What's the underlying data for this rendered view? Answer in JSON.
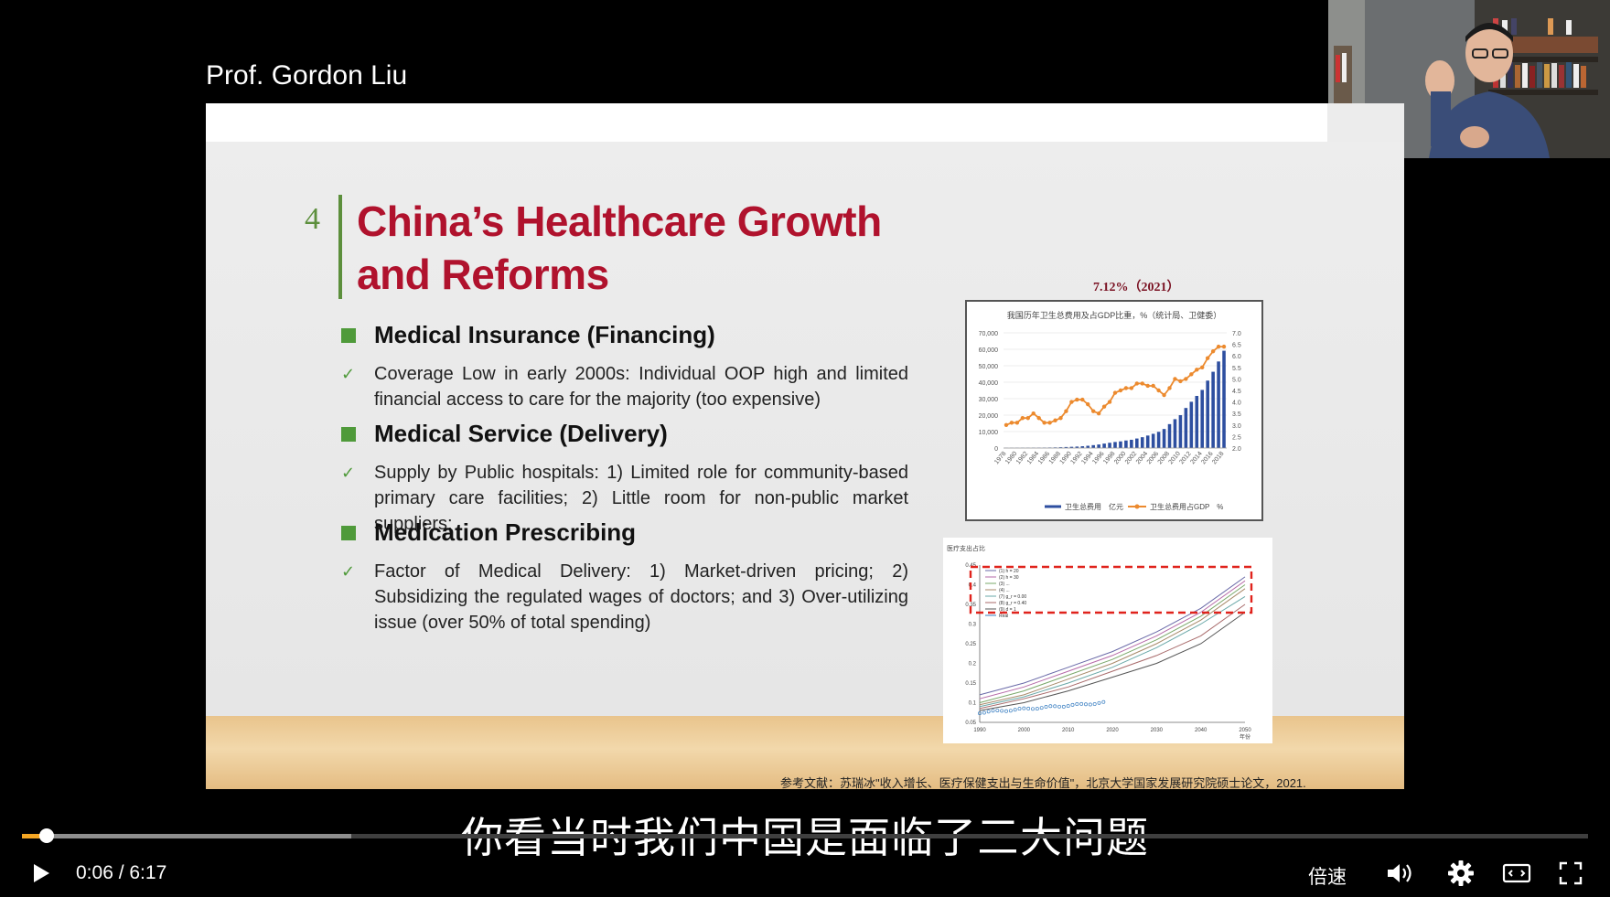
{
  "presenter": {
    "name": "Prof. Gordon Liu"
  },
  "slide": {
    "number": "4",
    "title_line1": "China’s Healthcare Growth",
    "title_line2": "and Reforms",
    "sections": [
      {
        "heading": "Medical Insurance (Financing)",
        "bullet": "Coverage Low in early 2000s: Individual OOP high and limited financial access to care for the majority (too expensive)"
      },
      {
        "heading": "Medical Service (Delivery)",
        "bullet": "Supply by Public hospitals: 1) Limited role for community-based primary care facilities; 2) Little room for non-public market suppliers;"
      },
      {
        "heading": "Medication Prescribing",
        "bullet": "Factor of Medical Delivery: 1) Market-driven pricing; 2) Subsidizing the regulated wages of doctors; and 3) Over-utilizing issue (over 50% of total spending)"
      }
    ],
    "chart1_label": "7.12%（2021）",
    "reference": "参考文献：苏瑞冰\"收入增长、医疗保健支出与生命价值\"，北京大学国家发展研究院硕士论文，2021."
  },
  "chart_data": [
    {
      "type": "bar",
      "title": "我国历年卫生总费用及占GDP比重，%（统计局、卫健委）",
      "categories": [
        "1978",
        "1979",
        "1980",
        "1981",
        "1982",
        "1983",
        "1984",
        "1985",
        "1986",
        "1987",
        "1988",
        "1989",
        "1990",
        "1991",
        "1992",
        "1993",
        "1994",
        "1995",
        "1996",
        "1997",
        "1998",
        "1999",
        "2000",
        "2001",
        "2002",
        "2003",
        "2004",
        "2005",
        "2006",
        "2007",
        "2008",
        "2009",
        "2010",
        "2011",
        "2012",
        "2013",
        "2014",
        "2015",
        "2016",
        "2017",
        "2018"
      ],
      "x_tick_labels": [
        "1978",
        "1980",
        "1982",
        "1984",
        "1986",
        "1988",
        "1990",
        "1992",
        "1994",
        "1996",
        "1998",
        "2000",
        "2002",
        "2004",
        "2006",
        "2008",
        "2010",
        "2012",
        "2014",
        "2016",
        "2018"
      ],
      "ylim_left": [
        0,
        70000
      ],
      "y_ticks_left": [
        "0",
        "10,000",
        "20,000",
        "30,000",
        "40,000",
        "50,000",
        "60,000",
        "70,000"
      ],
      "ylim_right": [
        2.0,
        7.0
      ],
      "y_ticks_right": [
        "2.0",
        "2.5",
        "3.0",
        "3.5",
        "4.0",
        "4.5",
        "5.0",
        "5.5",
        "6.0",
        "6.5",
        "7.0"
      ],
      "series": [
        {
          "name": "卫生总费用　亿元",
          "color": "#2e4fa0",
          "values": [
            110,
            126,
            143,
            160,
            177,
            207,
            242,
            279,
            316,
            379,
            488,
            615,
            747,
            893,
            1096,
            1377,
            1761,
            2155,
            2709,
            3197,
            3679,
            4048,
            4587,
            5025,
            5790,
            6584,
            7590,
            8660,
            9843,
            11574,
            14535,
            17542,
            19980,
            24346,
            28119,
            31669,
            35312,
            40975,
            46345,
            52598,
            59122
          ]
        },
        {
          "name": "卫生总费用占GDP　%",
          "color": "#ec8a2e",
          "axis": "right",
          "values": [
            3.0,
            3.1,
            3.1,
            3.3,
            3.3,
            3.5,
            3.3,
            3.1,
            3.1,
            3.2,
            3.3,
            3.6,
            4.0,
            4.1,
            4.1,
            3.9,
            3.6,
            3.5,
            3.8,
            4.0,
            4.4,
            4.5,
            4.6,
            4.6,
            4.8,
            4.8,
            4.7,
            4.7,
            4.5,
            4.3,
            4.6,
            5.0,
            4.9,
            5.0,
            5.2,
            5.4,
            5.5,
            5.9,
            6.2,
            6.4,
            6.4
          ]
        }
      ],
      "grid": true,
      "legend": "bottom"
    },
    {
      "type": "line",
      "title": "医疗支出占比",
      "xlabel": "年份",
      "x_ticks": [
        "1990",
        "2000",
        "2010",
        "2020",
        "2030",
        "2040",
        "2050"
      ],
      "y_ticks": [
        "0.05",
        "0.1",
        "0.15",
        "0.2",
        "0.25",
        "0.3",
        "0.35",
        "0.4",
        "0.45"
      ],
      "ylim": [
        0.05,
        0.45
      ],
      "x": [
        1990,
        2000,
        2010,
        2020,
        2030,
        2040,
        2050
      ],
      "series": [
        {
          "name": "(1) h = 20",
          "values": [
            0.12,
            0.15,
            0.19,
            0.23,
            0.28,
            0.34,
            0.42
          ]
        },
        {
          "name": "(2) h = 30",
          "values": [
            0.11,
            0.14,
            0.18,
            0.22,
            0.27,
            0.33,
            0.41
          ]
        },
        {
          "name": "(3) ...",
          "values": [
            0.1,
            0.13,
            0.17,
            0.21,
            0.26,
            0.32,
            0.4
          ]
        },
        {
          "name": "(4) ...",
          "values": [
            0.095,
            0.12,
            0.16,
            0.2,
            0.25,
            0.31,
            0.39
          ]
        },
        {
          "name": "(7) g_r = 0.00",
          "values": [
            0.09,
            0.115,
            0.15,
            0.19,
            0.24,
            0.3,
            0.37
          ]
        },
        {
          "name": "(8) g_r = 0.40",
          "values": [
            0.085,
            0.11,
            0.14,
            0.18,
            0.22,
            0.27,
            0.35
          ]
        },
        {
          "name": "(9) d = 1",
          "values": [
            0.08,
            0.1,
            0.13,
            0.165,
            0.2,
            0.25,
            0.33
          ]
        },
        {
          "name": "Real",
          "values": [
            0.075,
            0.085,
            0.1,
            null,
            null,
            null,
            null
          ]
        }
      ],
      "legend": "top-left"
    }
  ],
  "subtitle": "你看当时我们中国是面临了三大问题",
  "player": {
    "current_time": "0:06",
    "duration": "6:17",
    "time_display": "0:06 / 6:17",
    "progress": 0.016,
    "buffered": 0.21,
    "speed_label": "倍速"
  }
}
